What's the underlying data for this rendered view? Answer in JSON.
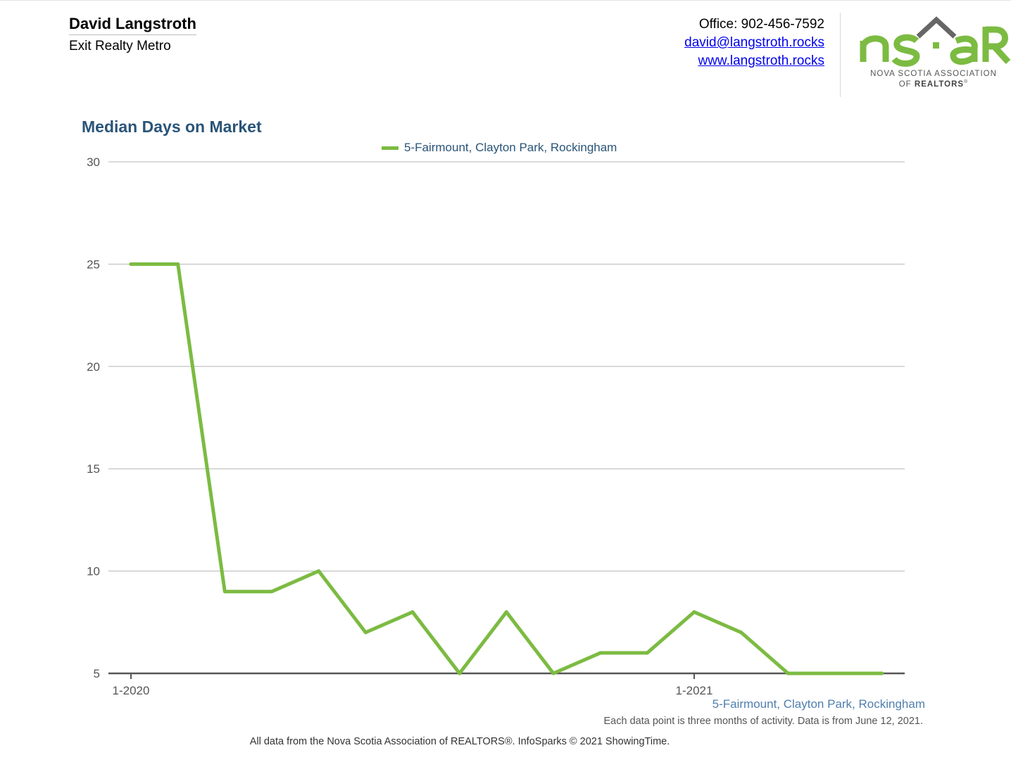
{
  "header": {
    "agent_name": "David Langstroth",
    "company": "Exit Realty Metro",
    "office": "Office: 902-456-7592",
    "email": "david@langstroth.rocks",
    "website": "www.langstroth.rocks"
  },
  "logo": {
    "wordmark": "nsar",
    "line1": "NOVA SCOTIA ASSOCIATION",
    "line2_prefix": "OF ",
    "line2_bold": "REALTORS",
    "registered": "®"
  },
  "chart_data": {
    "type": "line",
    "title": "Median Days on Market",
    "xlabel": "",
    "ylabel": "",
    "ylim": [
      5,
      30
    ],
    "yticks": [
      "30",
      "25",
      "20",
      "15",
      "10",
      "5"
    ],
    "x_tick_labels": [
      "1-2020",
      "1-2021"
    ],
    "x_tick_indices": [
      0,
      12
    ],
    "grid": true,
    "legend": "top-center",
    "series": [
      {
        "name": "5-Fairmount, Clayton Park, Rockingham",
        "color": "#7cbb42",
        "x": [
          "1-2020",
          "2-2020",
          "3-2020",
          "4-2020",
          "5-2020",
          "6-2020",
          "7-2020",
          "8-2020",
          "9-2020",
          "10-2020",
          "11-2020",
          "12-2020",
          "1-2021",
          "2-2021",
          "3-2021",
          "4-2021",
          "5-2021"
        ],
        "values": [
          25,
          25,
          9,
          9,
          10,
          7,
          8,
          5,
          8,
          5,
          6,
          6,
          8,
          7,
          5,
          5,
          5
        ]
      }
    ]
  },
  "bottom_series_label": "5-Fairmount, Clayton Park, Rockingham",
  "note": "Each data point is three months of activity. Data is from June 12, 2021.",
  "footer": "All data from the Nova Scotia Association of REALTORS®. InfoSparks © 2021 ShowingTime.",
  "colors": {
    "title": "#2a5477",
    "series": "#7cbb42",
    "logo_green": "#7cbb42",
    "logo_gray": "#666666"
  }
}
